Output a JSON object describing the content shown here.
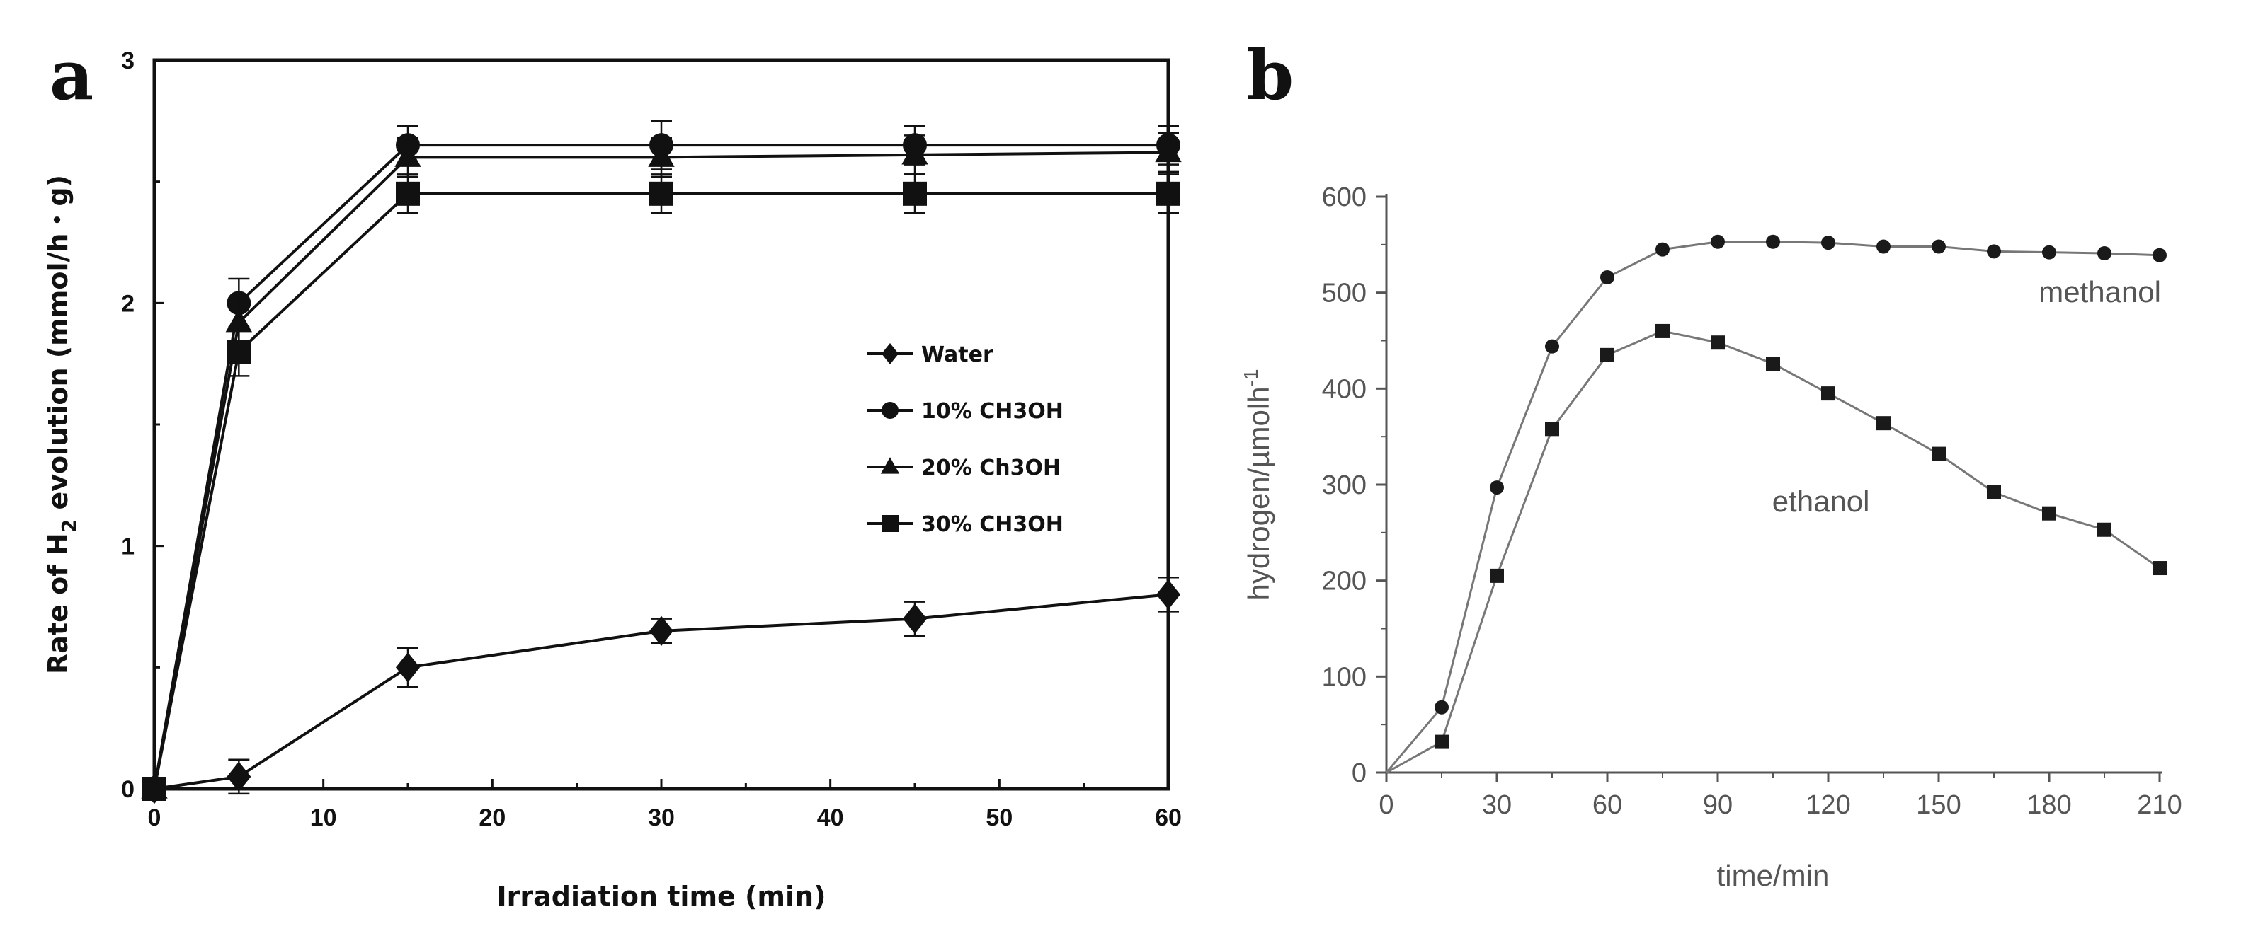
{
  "chart_data": [
    {
      "panel": "a",
      "type": "line",
      "title": "",
      "xlabel": "Irradiation time (min)",
      "ylabel_main": "Rate of H",
      "ylabel_sub": "2",
      "ylabel_tail": " evolution (mmol/h・g)",
      "xlim": [
        0,
        60
      ],
      "ylim": [
        0,
        3
      ],
      "xticks": [
        0,
        10,
        20,
        30,
        40,
        50,
        60
      ],
      "yticks": [
        0,
        1,
        2,
        3
      ],
      "grid": false,
      "legend_position": "center-right",
      "series": [
        {
          "name": "Water",
          "marker": "diamond",
          "x": [
            0,
            5,
            15,
            30,
            45,
            60
          ],
          "values": [
            0,
            0.05,
            0.5,
            0.65,
            0.7,
            0.8
          ],
          "errors": [
            0,
            0.07,
            0.08,
            0.05,
            0.07,
            0.07
          ]
        },
        {
          "name": "10% CH3OH",
          "marker": "circle",
          "x": [
            0,
            5,
            15,
            30,
            45,
            60
          ],
          "values": [
            0,
            2.0,
            2.65,
            2.65,
            2.65,
            2.65
          ],
          "errors": [
            0,
            0.1,
            0.08,
            0.1,
            0.08,
            0.08
          ]
        },
        {
          "name": "20% Ch3OH",
          "marker": "triangle",
          "x": [
            0,
            5,
            15,
            30,
            45,
            60
          ],
          "values": [
            0,
            1.92,
            2.6,
            2.6,
            2.61,
            2.62
          ],
          "errors": [
            0,
            0.1,
            0.08,
            0.08,
            0.08,
            0.08
          ]
        },
        {
          "name": "30% CH3OH",
          "marker": "square",
          "x": [
            0,
            5,
            15,
            30,
            45,
            60
          ],
          "values": [
            0,
            1.8,
            2.45,
            2.45,
            2.45,
            2.45
          ],
          "errors": [
            0,
            0.1,
            0.08,
            0.08,
            0.08,
            0.08
          ]
        }
      ]
    },
    {
      "panel": "b",
      "type": "line",
      "title": "",
      "xlabel": "time/min",
      "ylabel_main": "hydrogen/µmolh",
      "ylabel_sup": "-1",
      "xlim": [
        0,
        210
      ],
      "ylim": [
        0,
        600
      ],
      "xticks": [
        0,
        30,
        60,
        90,
        120,
        150,
        180,
        210
      ],
      "yticks": [
        0,
        100,
        200,
        300,
        400,
        500,
        600
      ],
      "grid": false,
      "series": [
        {
          "name": "methanol",
          "marker": "circle",
          "x": [
            0,
            15,
            30,
            45,
            60,
            75,
            90,
            105,
            120,
            135,
            150,
            165,
            180,
            195,
            210
          ],
          "values": [
            0,
            68,
            297,
            444,
            516,
            545,
            553,
            553,
            552,
            548,
            548,
            543,
            542,
            541,
            539
          ]
        },
        {
          "name": "ethanol",
          "marker": "square",
          "x": [
            0,
            15,
            30,
            45,
            60,
            75,
            90,
            105,
            120,
            135,
            150,
            165,
            180,
            195,
            210
          ],
          "values": [
            0,
            32,
            205,
            358,
            435,
            460,
            448,
            426,
            395,
            364,
            332,
            292,
            270,
            253,
            213
          ]
        }
      ]
    }
  ],
  "labels": {
    "panel_a": "a",
    "panel_b": "b"
  },
  "colors": {
    "a_ink": "#111111",
    "b_ink": "#555555",
    "b_line": "#777777",
    "b_marker": "#1a1a1a"
  }
}
